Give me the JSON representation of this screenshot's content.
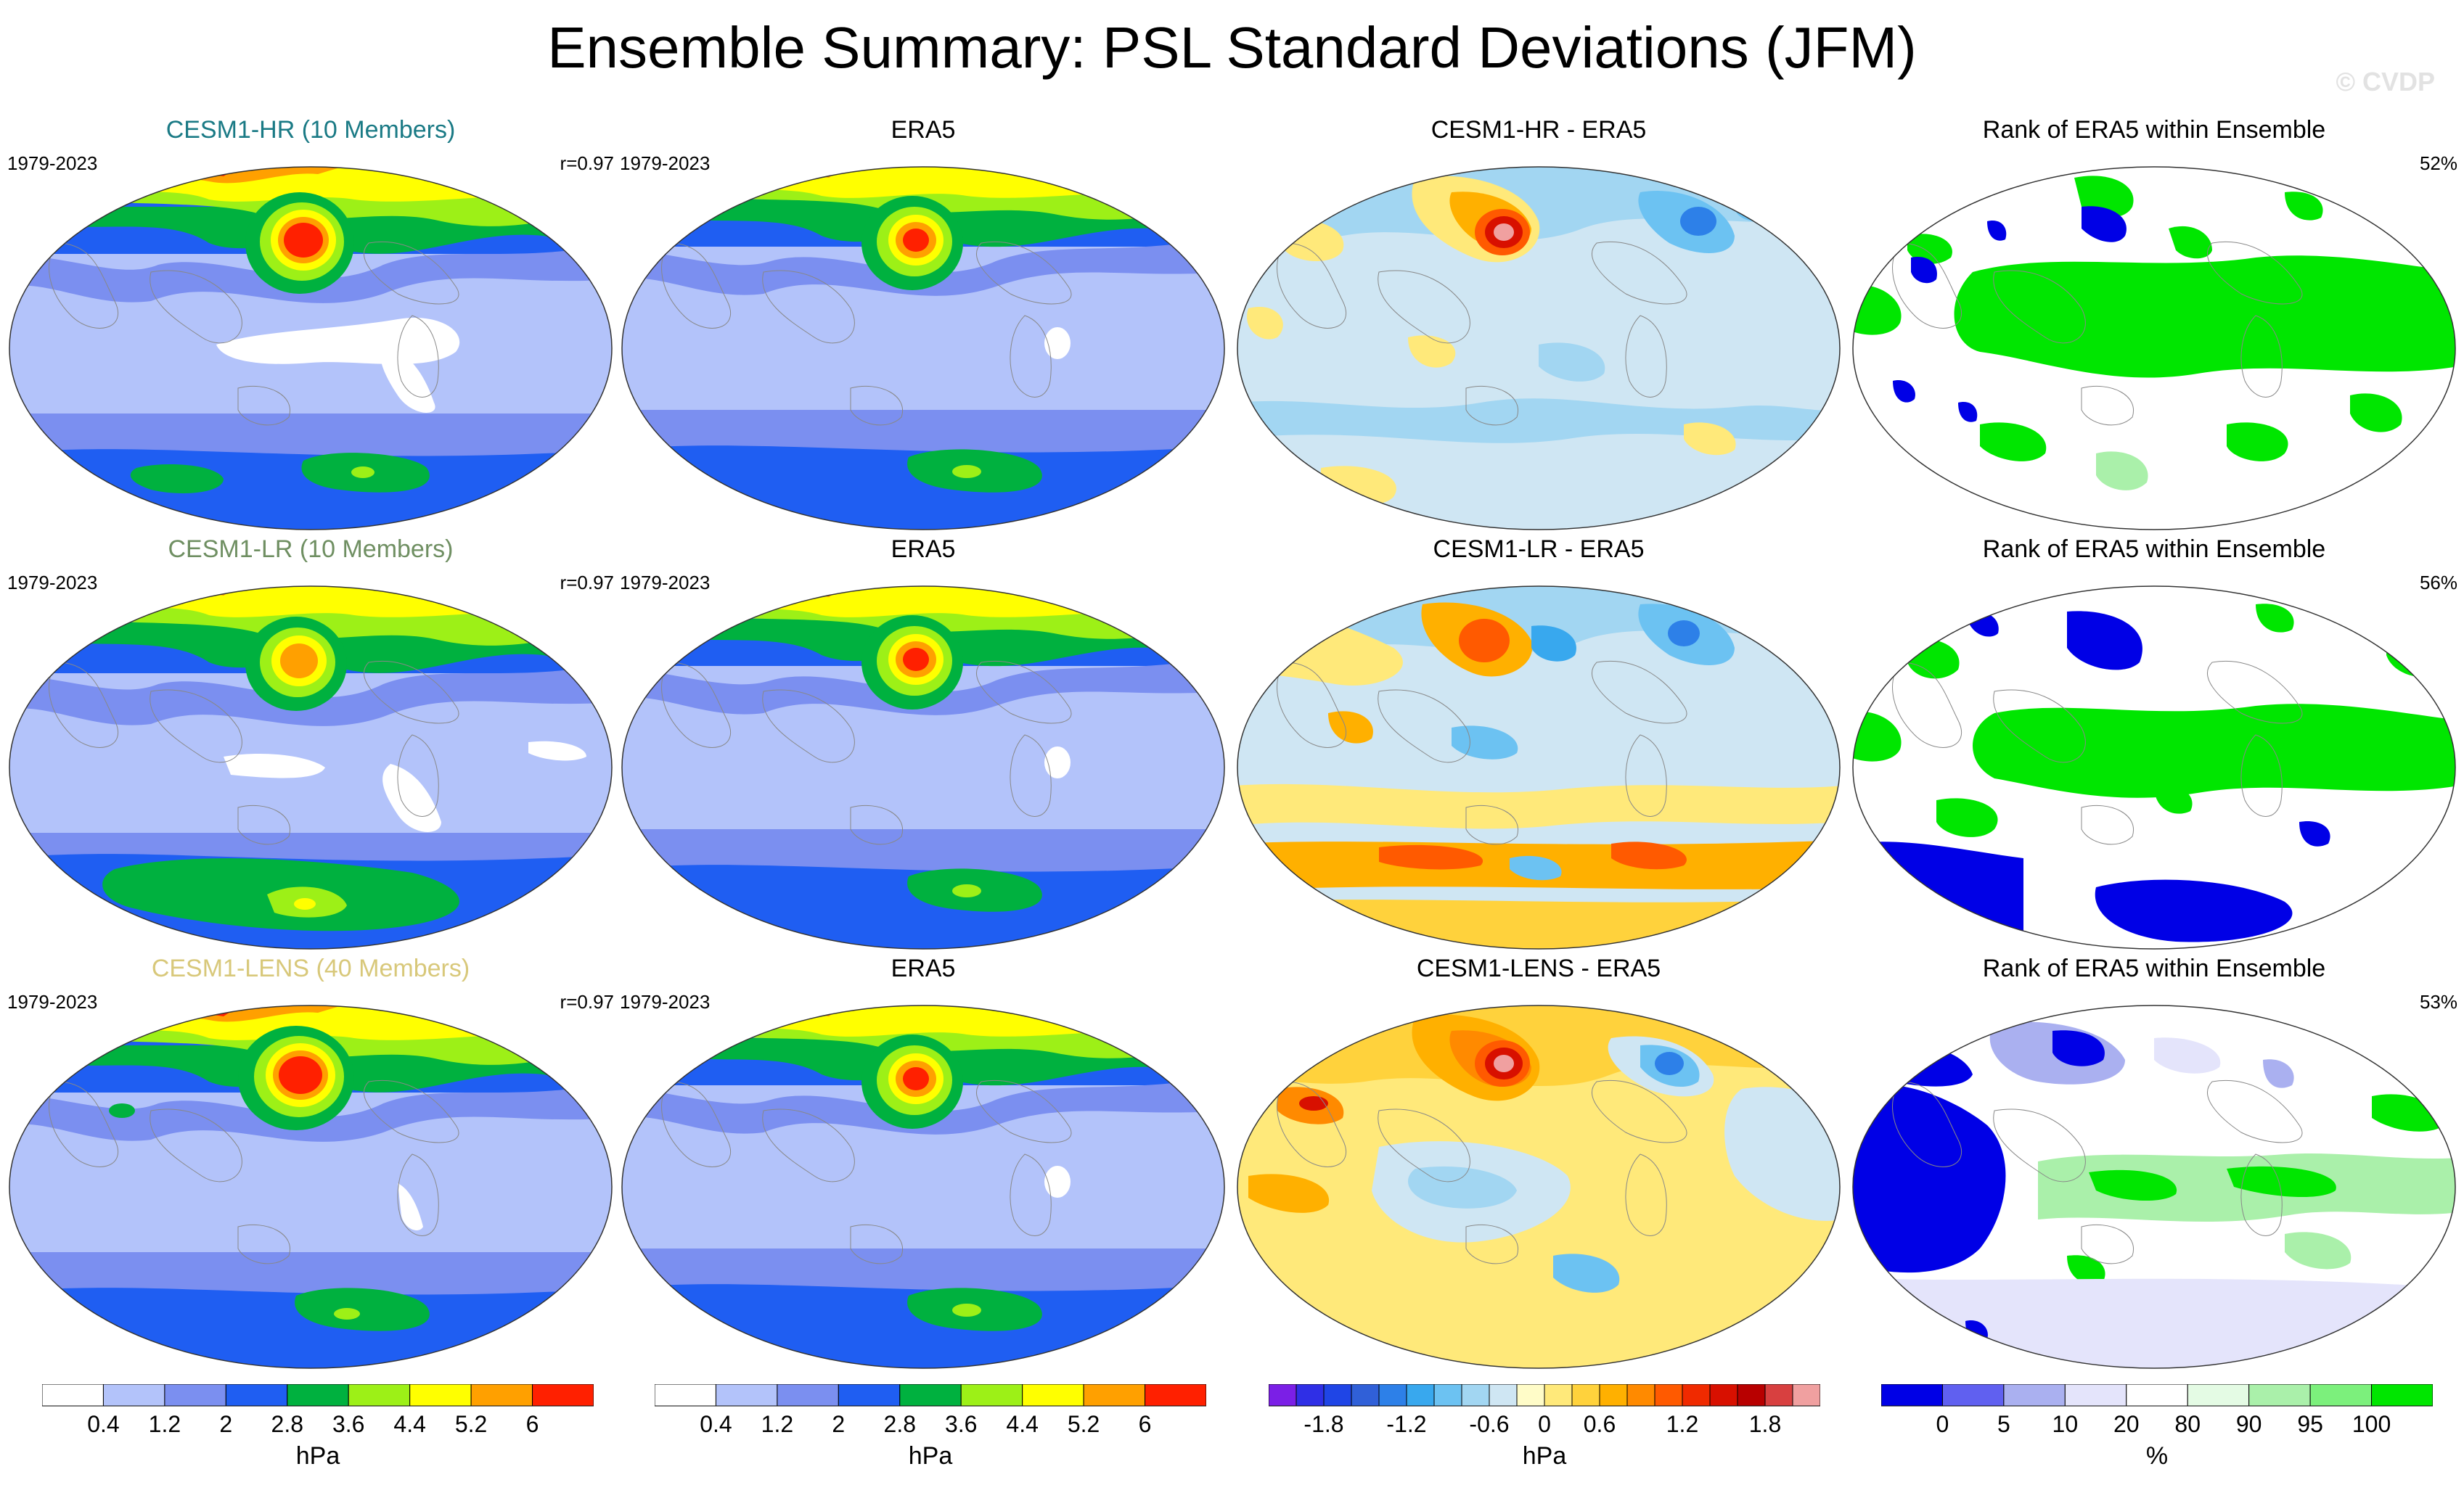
{
  "title": "Ensemble Summary: PSL Standard Deviations (JFM)",
  "watermark": "© CVDP",
  "colors": {
    "std": [
      "#ffffff",
      "#b3c3fa",
      "#7b8ff0",
      "#1f5ef2",
      "#00b13f",
      "#9df017",
      "#ffff00",
      "#ffa000",
      "#ff2000"
    ],
    "diff": [
      "#7b1fe6",
      "#2f2fe6",
      "#1f45e6",
      "#3060d8",
      "#2d80e8",
      "#38a8ee",
      "#6cc2f2",
      "#a2d6f2",
      "#cfe6f3",
      "#fffcc8",
      "#ffe97a",
      "#ffd23c",
      "#ffb000",
      "#ff8a00",
      "#ff5a00",
      "#f02a00",
      "#d81000",
      "#b80000",
      "#d84040",
      "#f0a0a0"
    ],
    "rank": [
      "#0000e6",
      "#6060f0",
      "#aab0f0",
      "#e4e4fb",
      "#ffffff",
      "#e4fbe4",
      "#aaf0aa",
      "#7cf07c",
      "#00e600"
    ],
    "green_title": "#1a7a85",
    "lr_title": "#6f8f62",
    "lens_title": "#d8c87a"
  },
  "rows": [
    {
      "model_title": "CESM1-HR (10 Members)",
      "model_years": "1979-2023",
      "model_r": "r=0.97",
      "obs_title": "ERA5",
      "obs_years": "1979-2023",
      "diff_title": "CESM1-HR - ERA5",
      "rank_title": "Rank of ERA5 within Ensemble",
      "rank_pct": "52%"
    },
    {
      "model_title": "CESM1-LR (10 Members)",
      "model_years": "1979-2023",
      "model_r": "r=0.97",
      "obs_title": "ERA5",
      "obs_years": "1979-2023",
      "diff_title": "CESM1-LR - ERA5",
      "rank_title": "Rank of ERA5 within Ensemble",
      "rank_pct": "56%"
    },
    {
      "model_title": "CESM1-LENS (40 Members)",
      "model_years": "1979-2023",
      "model_r": "r=0.97",
      "obs_title": "ERA5",
      "obs_years": "1979-2023",
      "diff_title": "CESM1-LENS - ERA5",
      "rank_title": "Rank of ERA5 within Ensemble",
      "rank_pct": "53%"
    }
  ],
  "colorbars": {
    "std": {
      "labels": [
        "0.4",
        "1.2",
        "2",
        "2.8",
        "3.6",
        "4.4",
        "5.2",
        "6"
      ],
      "unit": "hPa"
    },
    "diff": {
      "labels": [
        "-1.8",
        "-1.2",
        "-0.6",
        "0",
        "0.6",
        "1.2",
        "1.8"
      ],
      "unit": "hPa"
    },
    "rank": {
      "labels": [
        "0",
        "5",
        "10",
        "20",
        "80",
        "90",
        "95",
        "100"
      ],
      "unit": "%"
    }
  }
}
